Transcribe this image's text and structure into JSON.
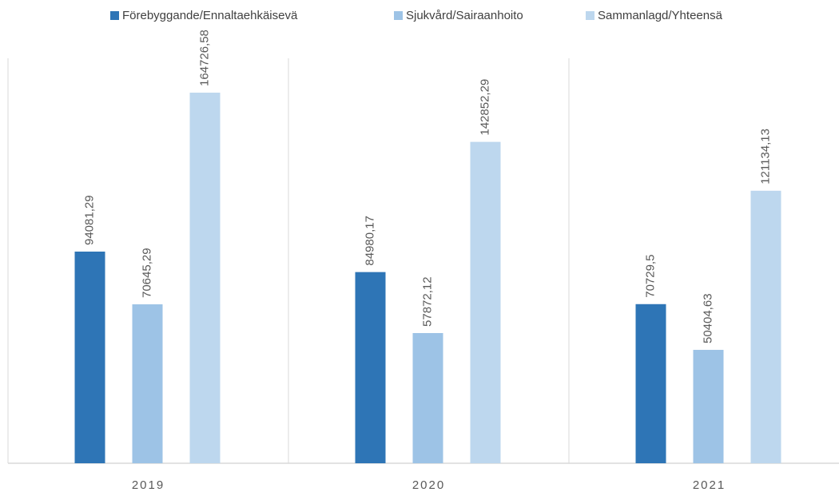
{
  "chart_data": {
    "type": "bar",
    "categories": [
      "2019",
      "2020",
      "2021"
    ],
    "series": [
      {
        "name": "Förebyggande/Ennaltaehkäisevä",
        "color": "#2e75b6",
        "values": [
          94081.29,
          84980.17,
          70729.5
        ],
        "value_labels": [
          "94081,29",
          "84980,17",
          "70729,5"
        ]
      },
      {
        "name": "Sjukvård/Sairaanhoito",
        "color": "#9dc3e6",
        "values": [
          70645.29,
          57872.12,
          50404.63
        ],
        "value_labels": [
          "70645,29",
          "57872,12",
          "50404,63"
        ]
      },
      {
        "name": "Sammanlagd/Yhteensä",
        "color": "#bdd7ee",
        "values": [
          164726.58,
          142852.29,
          121134.13
        ],
        "value_labels": [
          "164726,58",
          "142852,29",
          "121134,13"
        ]
      }
    ],
    "ylim": [
      0,
      180000
    ],
    "legend": "top"
  }
}
